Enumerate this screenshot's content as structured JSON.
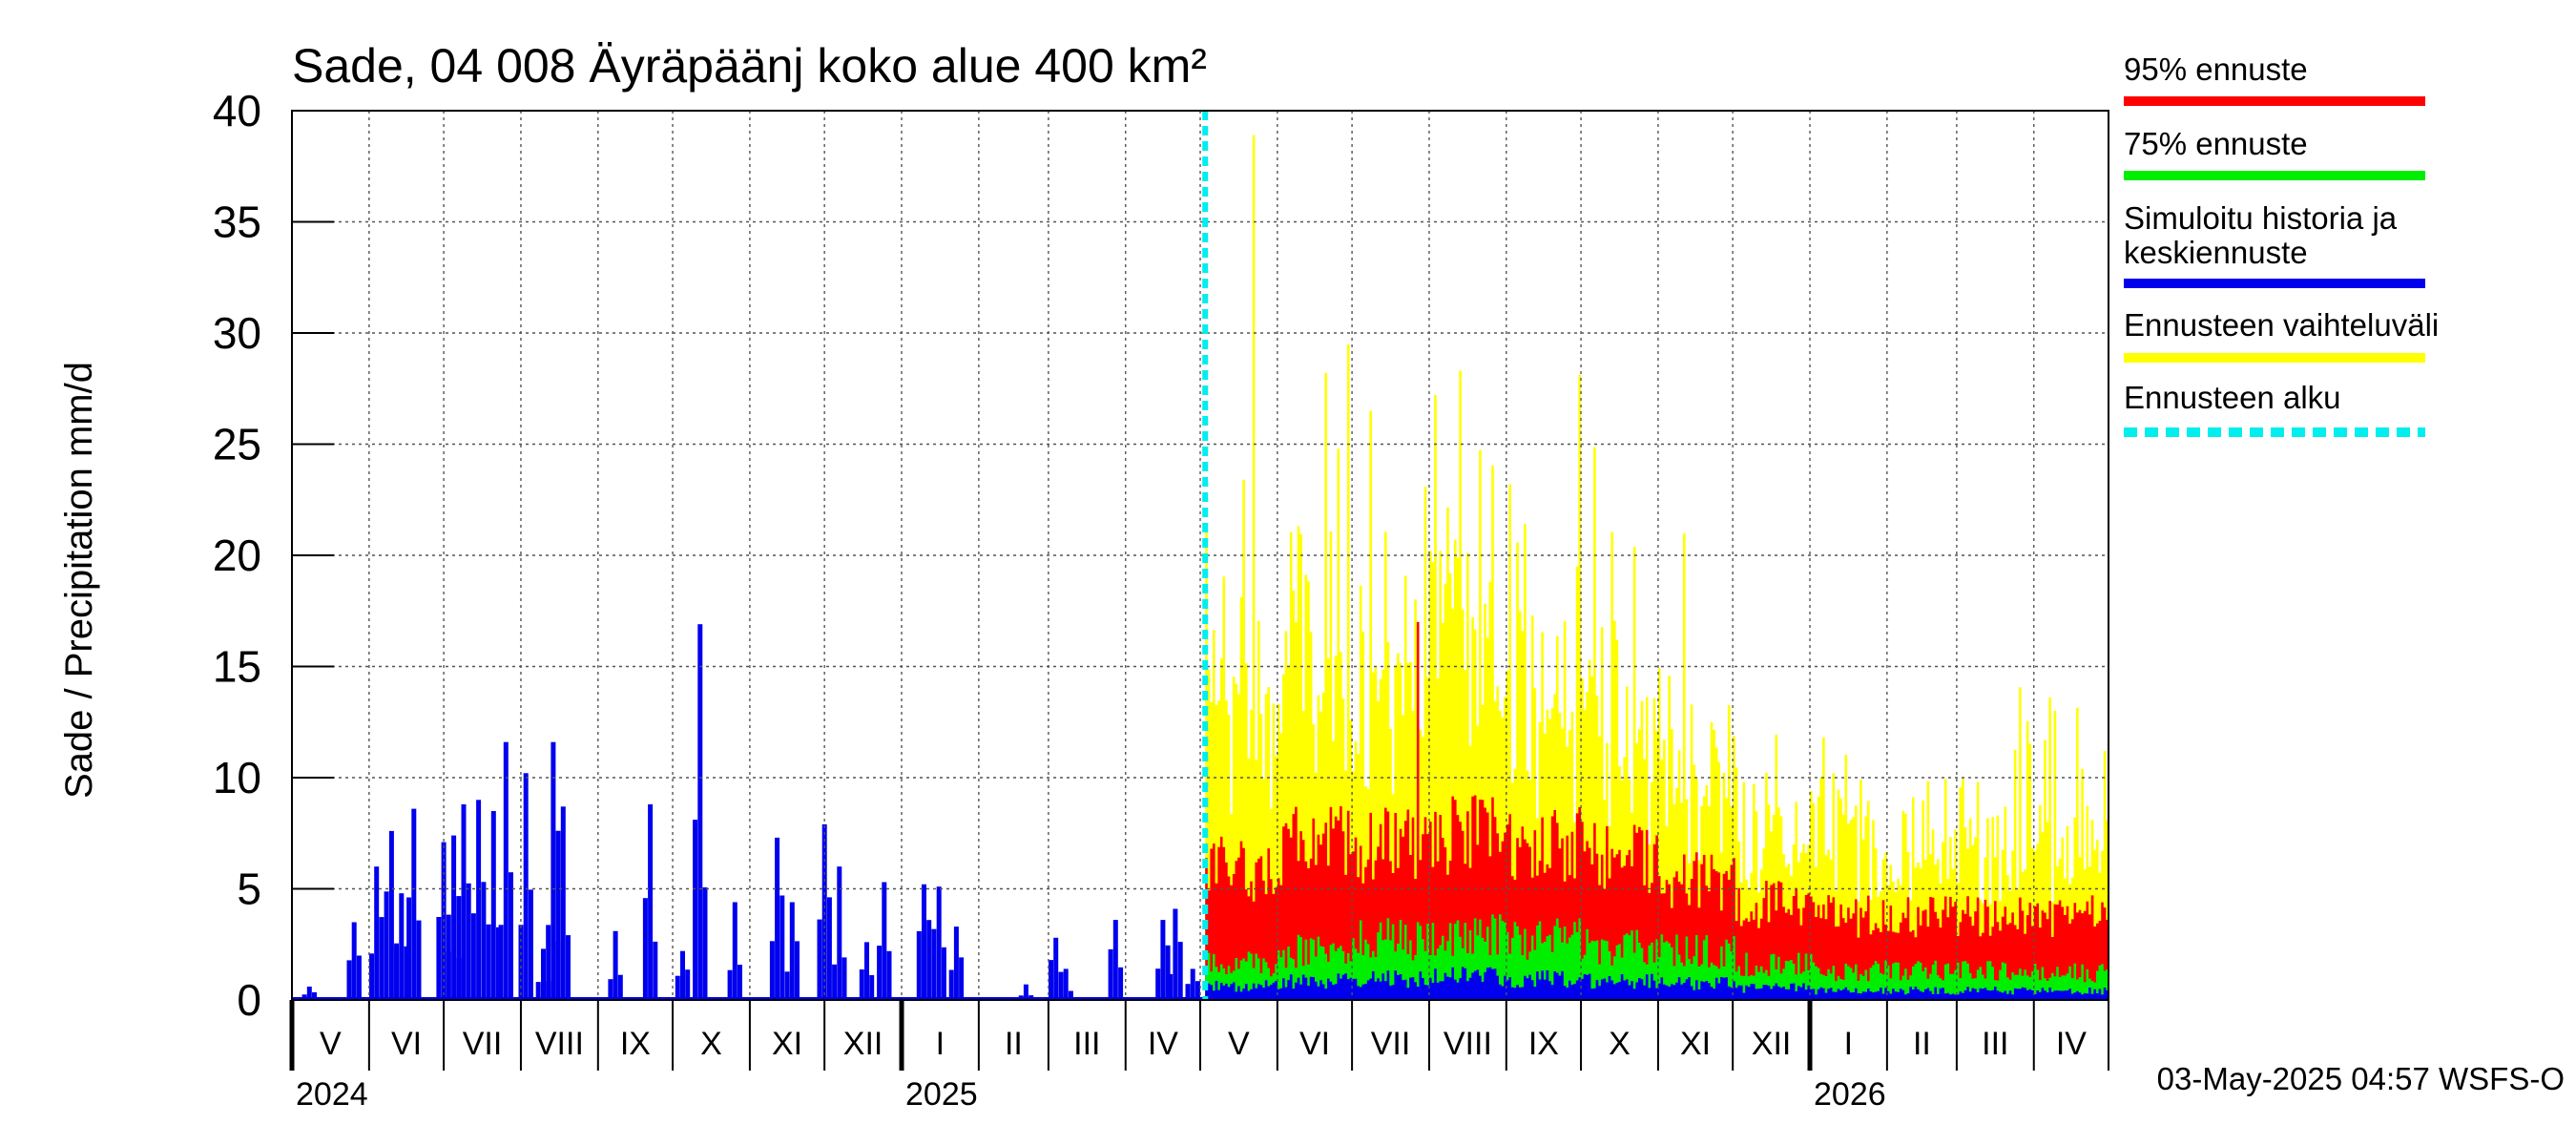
{
  "chart_data": {
    "type": "bar",
    "title": "Sade, 04 008 Äyräpäänj koko alue 400 km²",
    "ylabel": "Sade / Precipitation   mm/d",
    "ylim": [
      0,
      40
    ],
    "yticks": [
      "0",
      "5",
      "10",
      "15",
      "20",
      "25",
      "30",
      "35",
      "40"
    ],
    "x_range": [
      "2024-05-01",
      "2026-04-30"
    ],
    "forecast_start": "2025-05-03",
    "months": [
      {
        "label": "V",
        "start": "2024-05-01"
      },
      {
        "label": "VI",
        "start": "2024-06-01"
      },
      {
        "label": "VII",
        "start": "2024-07-01"
      },
      {
        "label": "VIII",
        "start": "2024-08-01"
      },
      {
        "label": "IX",
        "start": "2024-09-01"
      },
      {
        "label": "X",
        "start": "2024-10-01"
      },
      {
        "label": "XI",
        "start": "2024-11-01"
      },
      {
        "label": "XII",
        "start": "2024-12-01"
      },
      {
        "label": "I",
        "start": "2025-01-01"
      },
      {
        "label": "II",
        "start": "2025-02-01"
      },
      {
        "label": "III",
        "start": "2025-03-01"
      },
      {
        "label": "IV",
        "start": "2025-04-01"
      },
      {
        "label": "V",
        "start": "2025-05-01"
      },
      {
        "label": "VI",
        "start": "2025-06-01"
      },
      {
        "label": "VII",
        "start": "2025-07-01"
      },
      {
        "label": "VIII",
        "start": "2025-08-01"
      },
      {
        "label": "IX",
        "start": "2025-09-01"
      },
      {
        "label": "X",
        "start": "2025-10-01"
      },
      {
        "label": "XI",
        "start": "2025-11-01"
      },
      {
        "label": "XII",
        "start": "2025-12-01"
      },
      {
        "label": "I",
        "start": "2026-01-01"
      },
      {
        "label": "II",
        "start": "2026-02-01"
      },
      {
        "label": "III",
        "start": "2026-03-01"
      },
      {
        "label": "IV",
        "start": "2026-04-01"
      }
    ],
    "years": [
      {
        "label": "2024",
        "start": "2024-05-01"
      },
      {
        "label": "2025",
        "start": "2025-01-01"
      },
      {
        "label": "2026",
        "start": "2026-01-01"
      }
    ],
    "history_peaks": [
      {
        "date": "2024-05-08",
        "value": 0.6
      },
      {
        "date": "2024-05-26",
        "value": 3.5
      },
      {
        "date": "2024-06-04",
        "value": 6.0
      },
      {
        "date": "2024-06-10",
        "value": 7.6
      },
      {
        "date": "2024-06-14",
        "value": 4.8
      },
      {
        "date": "2024-06-19",
        "value": 8.6
      },
      {
        "date": "2024-07-01",
        "value": 7.1
      },
      {
        "date": "2024-07-05",
        "value": 7.4
      },
      {
        "date": "2024-07-09",
        "value": 8.8
      },
      {
        "date": "2024-07-15",
        "value": 9.0
      },
      {
        "date": "2024-07-21",
        "value": 8.5
      },
      {
        "date": "2024-07-26",
        "value": 11.6
      },
      {
        "date": "2024-08-03",
        "value": 10.2
      },
      {
        "date": "2024-08-10",
        "value": 2.3
      },
      {
        "date": "2024-08-14",
        "value": 11.6
      },
      {
        "date": "2024-08-18",
        "value": 8.7
      },
      {
        "date": "2024-09-08",
        "value": 3.1
      },
      {
        "date": "2024-09-22",
        "value": 8.8
      },
      {
        "date": "2024-10-05",
        "value": 2.2
      },
      {
        "date": "2024-10-12",
        "value": 16.9
      },
      {
        "date": "2024-10-26",
        "value": 4.4
      },
      {
        "date": "2024-11-12",
        "value": 7.3
      },
      {
        "date": "2024-11-18",
        "value": 4.4
      },
      {
        "date": "2024-12-01",
        "value": 7.9
      },
      {
        "date": "2024-12-07",
        "value": 6.0
      },
      {
        "date": "2024-12-18",
        "value": 2.6
      },
      {
        "date": "2024-12-25",
        "value": 5.3
      },
      {
        "date": "2025-01-10",
        "value": 5.2
      },
      {
        "date": "2025-01-16",
        "value": 5.1
      },
      {
        "date": "2025-01-23",
        "value": 3.3
      },
      {
        "date": "2025-02-20",
        "value": 0.7
      },
      {
        "date": "2025-03-04",
        "value": 2.8
      },
      {
        "date": "2025-03-08",
        "value": 1.4
      },
      {
        "date": "2025-03-28",
        "value": 3.6
      },
      {
        "date": "2025-04-16",
        "value": 3.6
      },
      {
        "date": "2025-04-21",
        "value": 4.1
      },
      {
        "date": "2025-04-28",
        "value": 1.4
      }
    ],
    "forecast_envelope": {
      "range_max_peak": 38.9,
      "range_max_peak_date": "2025-05-22",
      "p95_max_peak": 17.0,
      "p95_max_peak_date": "2025-07-27",
      "p95_typical": [
        5.5,
        6.5,
        6.5,
        7.0,
        6.5,
        6.0,
        5.0,
        4.0,
        3.5,
        3.5,
        3.5,
        3.5
      ],
      "p75_typical": [
        1.5,
        2.0,
        2.5,
        2.8,
        2.5,
        2.2,
        2.0,
        1.5,
        1.2,
        1.2,
        1.2,
        1.1
      ],
      "mean_typical": [
        0.6,
        0.8,
        0.9,
        1.0,
        0.9,
        0.8,
        0.7,
        0.5,
        0.4,
        0.4,
        0.4,
        0.4
      ]
    },
    "legend": [
      {
        "label": "95% ennuste",
        "color": "#ff0000",
        "style": "solid"
      },
      {
        "label": "75% ennuste",
        "color": "#00ee00",
        "style": "solid"
      },
      {
        "label": "Simuloitu historia ja keskiennuste",
        "color": "#0000ee",
        "style": "solid"
      },
      {
        "label": "Ennusteen vaihteluväli",
        "color": "#ffff00",
        "style": "solid"
      },
      {
        "label": "Ennusteen alku",
        "color": "#00eeee",
        "style": "dashed"
      }
    ],
    "legend_placement": "right",
    "grid": true,
    "timestamp": "03-May-2025 04:57 WSFS-O"
  }
}
